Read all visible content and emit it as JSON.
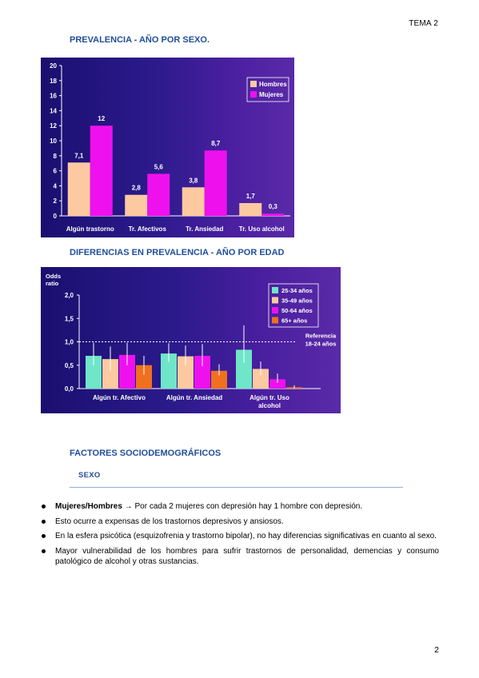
{
  "header": {
    "tema": "TEMA 2"
  },
  "sections": {
    "prevalencia_sexo": "PREVALENCIA - AÑO POR SEXO.",
    "prevalencia_edad": "DIFERENCIAS EN PREVALENCIA - AÑO POR EDAD",
    "factores": "FACTORES SOCIODEMOGRÁFICOS",
    "sexo": "SEXO"
  },
  "chart_data": [
    {
      "type": "bar",
      "categories": [
        "Algún trastorno",
        "Tr. Afectivos",
        "Tr. Ansiedad",
        "Tr. Uso alcohol"
      ],
      "series": [
        {
          "name": "Hombres",
          "values": [
            7.1,
            2.8,
            3.8,
            1.7
          ],
          "labels": [
            "7,1",
            "2,8",
            "3,8",
            "1,7"
          ],
          "color": "#fdc9a0"
        },
        {
          "name": "Mujeres",
          "values": [
            12,
            5.6,
            8.7,
            0.3
          ],
          "labels": [
            "12",
            "5,6",
            "8,7",
            "0,3"
          ],
          "color": "#ee11ee"
        }
      ],
      "yticks": [
        "0",
        "2",
        "4",
        "6",
        "8",
        "10",
        "12",
        "14",
        "16",
        "18",
        "20"
      ],
      "ylim": [
        0,
        20
      ],
      "legend": "top-right"
    },
    {
      "type": "bar",
      "ylabel": "Odds ratio",
      "categories": [
        "Algún tr. Afectivo",
        "Algún tr. Ansiedad",
        "Algún tr. Uso alcohol"
      ],
      "series": [
        {
          "name": "25-34 años",
          "values": [
            0.7,
            0.75,
            0.83
          ],
          "color": "#6fe6c8"
        },
        {
          "name": "35-49 años",
          "values": [
            0.63,
            0.69,
            0.42
          ],
          "color": "#fdc9a0"
        },
        {
          "name": "50-64 años",
          "values": [
            0.72,
            0.7,
            0.2
          ],
          "color": "#ee11ee"
        },
        {
          "name": "65+ años",
          "values": [
            0.5,
            0.38,
            0.03
          ],
          "color": "#f07020"
        }
      ],
      "error_upper": [
        [
          0.98,
          0.97,
          1.35
        ],
        [
          0.9,
          0.92,
          0.58
        ],
        [
          0.98,
          0.95,
          0.32
        ],
        [
          0.7,
          0.52,
          0.07
        ]
      ],
      "error_lower": [
        [
          0.5,
          0.57,
          0.55
        ],
        [
          0.38,
          0.5,
          0.28
        ],
        [
          0.5,
          0.48,
          0.12
        ],
        [
          0.3,
          0.28,
          0.0
        ]
      ],
      "yticks": [
        "0,0",
        "0,5",
        "1,0",
        "1,5",
        "2,0"
      ],
      "ylim": [
        0,
        2.0
      ],
      "reference": {
        "value": 1.0,
        "label_line1": "Referencia",
        "label_line2": "18-24 años"
      },
      "category_labels": [
        [
          "Algún tr. Afectivo"
        ],
        [
          "Algún tr. Ansiedad"
        ],
        [
          "Algún tr. Uso",
          "alcohol"
        ]
      ],
      "ylabel_lines": [
        "Odds",
        "ratio"
      ],
      "legend": "top-right"
    }
  ],
  "bullets": [
    {
      "bold": "Mujeres/Hombres",
      "text": " → Por cada 2 mujeres con depresión hay 1 hombre con depresión."
    },
    {
      "bold": "",
      "text": "Esto ocurre a expensas de los trastornos depresivos y ansiosos."
    },
    {
      "bold": "",
      "text": "En la esfera psicótica (esquizofrenia y trastorno bipolar), no hay diferencias significativas en cuanto al sexo."
    },
    {
      "bold": "",
      "text": "Mayor vulnerabilidad de los hombres para sufrir trastornos de personalidad, demencias y consumo patológico de alcohol y otras sustancias."
    }
  ],
  "page_number": "2"
}
